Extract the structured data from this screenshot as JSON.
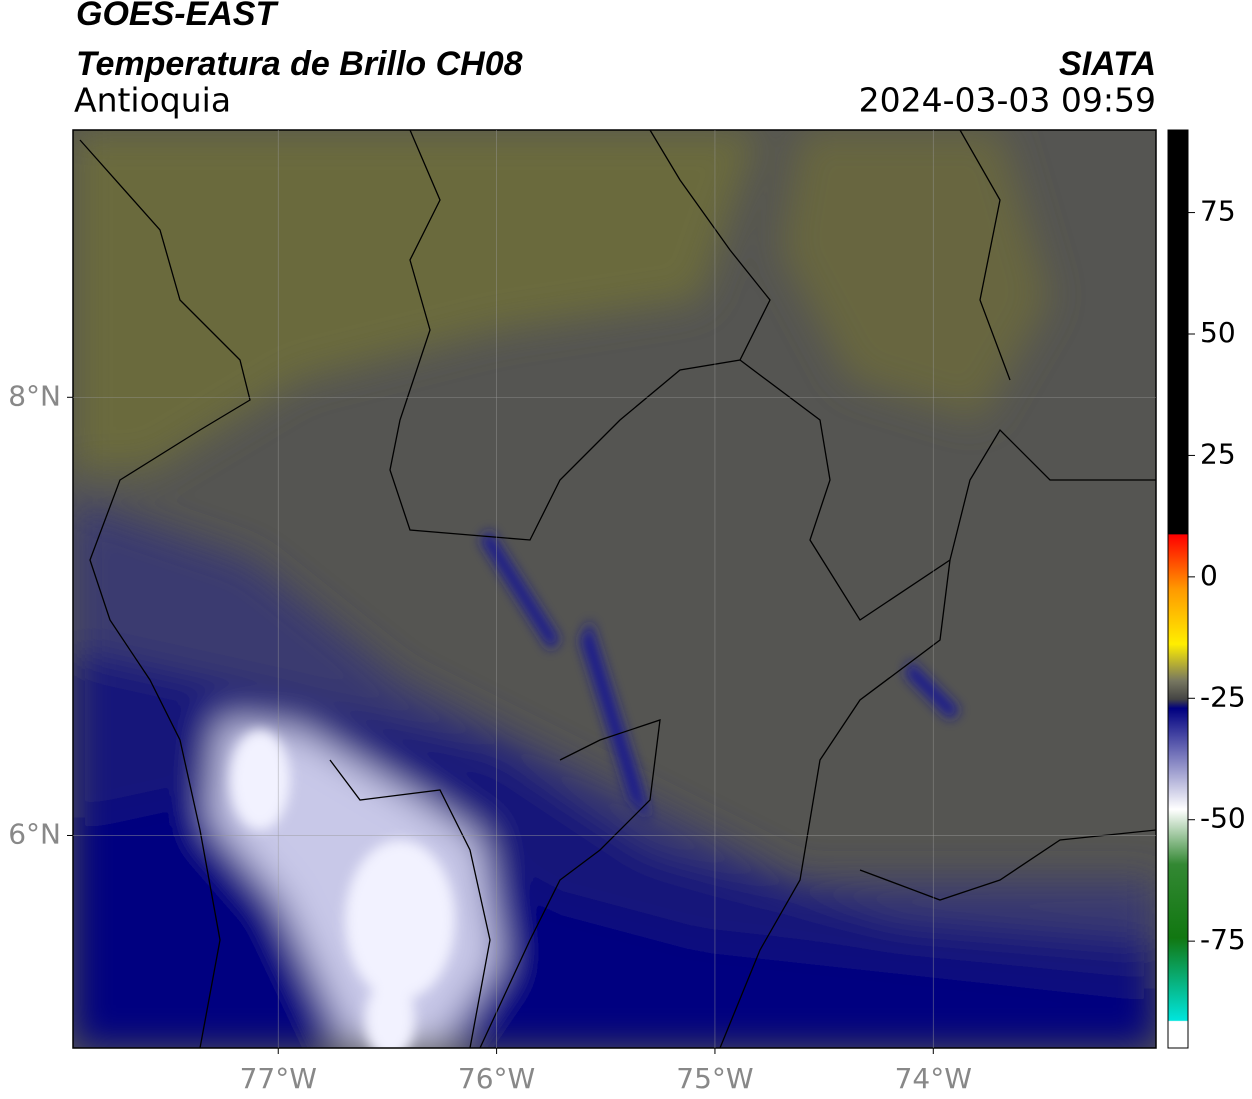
{
  "header": {
    "title": "GOES-EAST",
    "subtitle": "Temperatura de Brillo CH08",
    "region": "Antioquia",
    "source": "SIATA",
    "datetime": "2024-03-03 09:59"
  },
  "map": {
    "xlim": [
      -77.94,
      -72.98
    ],
    "ylim": [
      5.03,
      9.22
    ],
    "xticks": [
      {
        "value": -77,
        "label": "77°W"
      },
      {
        "value": -76,
        "label": "76°W"
      },
      {
        "value": -75,
        "label": "75°W"
      },
      {
        "value": -74,
        "label": "74°W"
      }
    ],
    "yticks": [
      {
        "value": 8,
        "label": "8°N"
      },
      {
        "value": 6,
        "label": "6°N"
      }
    ],
    "grid": true
  },
  "colorbar": {
    "lim": [
      -97,
      92
    ],
    "ticks": [
      75,
      50,
      25,
      0,
      -25,
      -50,
      -75
    ]
  }
}
